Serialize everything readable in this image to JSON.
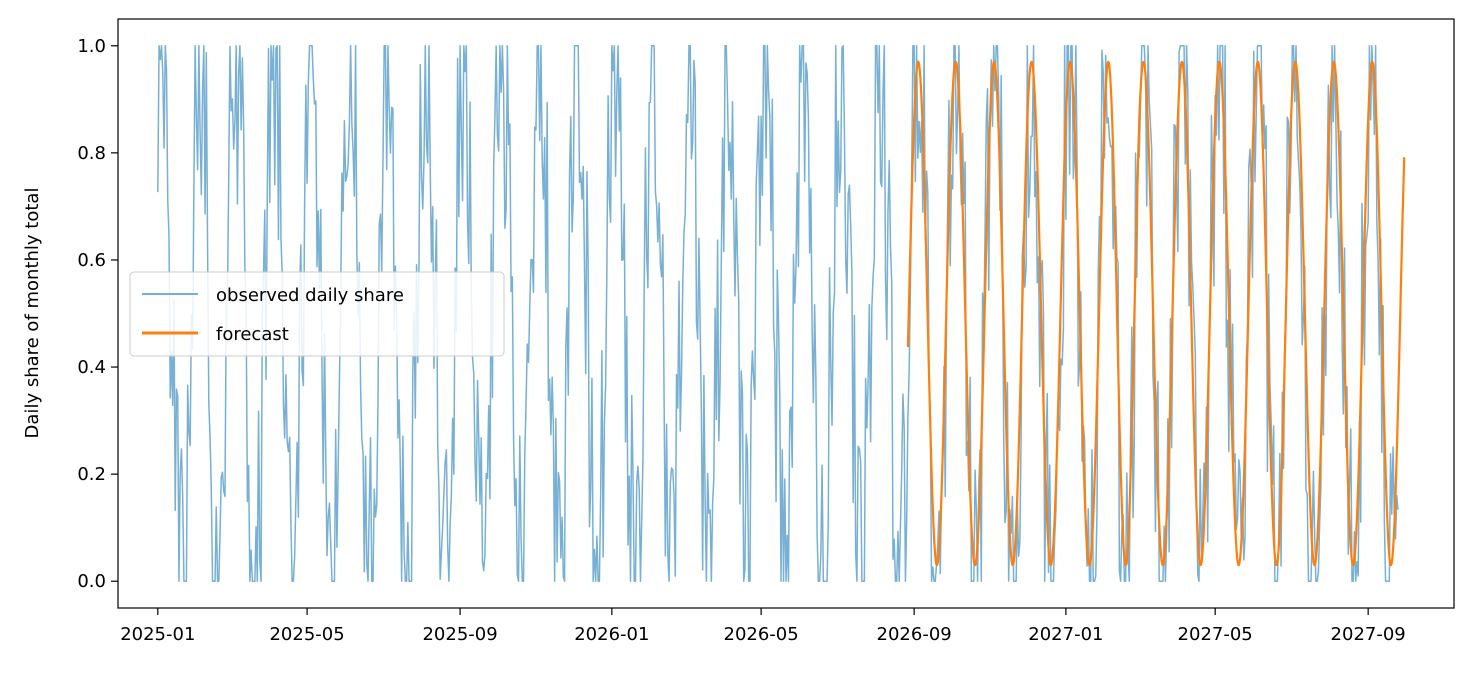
{
  "chart_data": {
    "type": "line",
    "title": "",
    "xlabel": "",
    "ylabel": "Daily share of monthly total",
    "xlim": [
      "2024-11-30",
      "2027-11-09"
    ],
    "ylim": [
      -0.05,
      1.05
    ],
    "grid": false,
    "legend_position": "center-left",
    "x_ticks": [
      "2025-01-01",
      "2025-05-01",
      "2025-09-01",
      "2026-01-01",
      "2026-05-01",
      "2026-09-01",
      "2027-01-01",
      "2027-05-01",
      "2027-09-01"
    ],
    "x_tick_labels": [
      "2025-01",
      "2025-05",
      "2025-09",
      "2026-01",
      "2026-05",
      "2026-09",
      "2027-01",
      "2027-05",
      "2027-09"
    ],
    "y_ticks": [
      0.0,
      0.2,
      0.4,
      0.6,
      0.8,
      1.0
    ],
    "y_tick_labels": [
      "0.0",
      "0.2",
      "0.4",
      "0.6",
      "0.8",
      "1.0"
    ],
    "series": [
      {
        "name": "observed daily share",
        "color": "#77b0d4",
        "line_width": 1.5,
        "start_date": "2025-01-01",
        "end_date": "2027-09-25",
        "shape": "oscillates between 0.0 and 1.0 each month, peaking around the 3rd-5th of each month, with heavy day-to-day noise",
        "min": 0.0,
        "max": 1.0
      },
      {
        "name": "forecast",
        "color": "#ff7f0e",
        "line_width": 2.2,
        "start_date": "2026-08-27",
        "end_date": "2027-09-30",
        "shape": "smooth monthly cycle peaking near 0.97 around the 4th of each month and bottoming near 0.03 around the 22nd",
        "peak": 0.97,
        "trough": 0.03
      }
    ]
  }
}
